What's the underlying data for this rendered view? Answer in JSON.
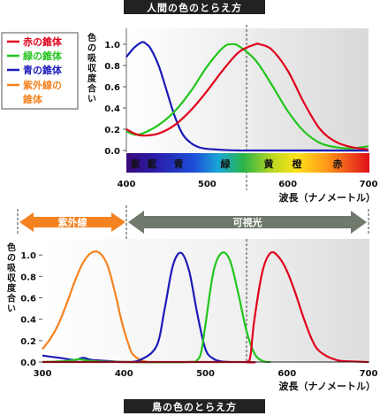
{
  "banners": {
    "top": "人間の色のとらえ方",
    "bottom": "鳥の色のとらえ方"
  },
  "legend": [
    {
      "label": "赤の錐体",
      "color": "#e0001b"
    },
    {
      "label": "緑の錐体",
      "color": "#22c51d"
    },
    {
      "label": "青の錐体",
      "color": "#1a1ab8"
    },
    {
      "label": "紫外線の",
      "label2": "錐体",
      "color": "#f58220"
    }
  ],
  "spectrum_labels": [
    "紫",
    "藍",
    "青",
    "緑",
    "黄",
    "橙",
    "赤"
  ],
  "uv_label": "紫外線",
  "visible_label": "可視光",
  "chart_data": [
    {
      "type": "line",
      "title": "人間の色のとらえ方",
      "xlabel": "波長（ナノメートル）",
      "ylabel": "色の吸収度合い",
      "xlim": [
        400,
        700
      ],
      "ylim": [
        0,
        1.15
      ],
      "xticks": [
        "400",
        "500",
        "600",
        "700"
      ],
      "yticks": [
        "0.0",
        "0.2",
        "0.4",
        "0.6",
        "0.8",
        "1.0"
      ],
      "reference_line_x": 555,
      "series": [
        {
          "name": "青の錐体",
          "color": "#1a1ab8",
          "x": [
            400,
            410,
            420,
            425,
            430,
            440,
            450,
            460,
            470,
            480,
            490,
            500,
            510,
            520,
            540,
            560,
            700
          ],
          "y": [
            0.88,
            0.97,
            1.02,
            1.0,
            0.96,
            0.8,
            0.56,
            0.32,
            0.15,
            0.07,
            0.03,
            0.015,
            0.01,
            0.005,
            0.0,
            0.0,
            0.0
          ]
        },
        {
          "name": "緑の錐体",
          "color": "#22c51d",
          "x": [
            400,
            410,
            420,
            440,
            460,
            480,
            500,
            520,
            530,
            540,
            560,
            580,
            600,
            620,
            640,
            660,
            680,
            700
          ],
          "y": [
            0.18,
            0.15,
            0.16,
            0.24,
            0.37,
            0.56,
            0.79,
            0.97,
            1.0,
            0.98,
            0.85,
            0.62,
            0.37,
            0.18,
            0.07,
            0.03,
            0.02,
            0.04
          ]
        },
        {
          "name": "赤の錐体",
          "color": "#e0001b",
          "x": [
            400,
            410,
            420,
            440,
            460,
            480,
            500,
            520,
            540,
            560,
            565,
            580,
            600,
            620,
            640,
            660,
            680,
            700
          ],
          "y": [
            0.2,
            0.16,
            0.14,
            0.16,
            0.24,
            0.38,
            0.56,
            0.76,
            0.93,
            1.0,
            1.0,
            0.95,
            0.75,
            0.45,
            0.2,
            0.08,
            0.03,
            0.01
          ]
        }
      ]
    },
    {
      "type": "line",
      "title": "鳥の色のとらえ方",
      "xlabel": "波長（ナノメートル）",
      "ylabel": "色の吸収度合い",
      "xlim": [
        300,
        700
      ],
      "ylim": [
        0,
        1.15
      ],
      "xticks": [
        "300",
        "400",
        "500",
        "600",
        "700"
      ],
      "yticks": [
        "0.0",
        "0.2",
        "0.4",
        "0.6",
        "0.8",
        "1.0"
      ],
      "reference_line_x": [
        400,
        555
      ],
      "series": [
        {
          "name": "紫外線の錐体",
          "color": "#f58220",
          "x": [
            300,
            310,
            320,
            330,
            340,
            350,
            360,
            370,
            380,
            390,
            395,
            400,
            405,
            410,
            420,
            430,
            440
          ],
          "y": [
            0.12,
            0.22,
            0.36,
            0.55,
            0.76,
            0.93,
            1.02,
            1.02,
            0.9,
            0.62,
            0.45,
            0.3,
            0.18,
            0.08,
            0.02,
            0.0,
            0.0
          ]
        },
        {
          "name": "青の錐体",
          "color": "#1a1ab8",
          "x": [
            300,
            320,
            340,
            350,
            360,
            380,
            400,
            420,
            440,
            450,
            460,
            470,
            480,
            490,
            500,
            510,
            520,
            530
          ],
          "y": [
            0.06,
            0.04,
            0.02,
            0.04,
            0.02,
            0.01,
            0.0,
            0.02,
            0.15,
            0.5,
            0.9,
            1.02,
            0.85,
            0.45,
            0.12,
            0.03,
            0.005,
            0.0
          ]
        },
        {
          "name": "緑の錐体",
          "color": "#22c51d",
          "x": [
            300,
            330,
            345,
            360,
            400,
            480,
            490,
            495,
            500,
            510,
            520,
            530,
            540,
            550,
            560,
            570,
            580
          ],
          "y": [
            0.0,
            0.01,
            0.025,
            0.01,
            0.0,
            0.0,
            0.02,
            0.1,
            0.35,
            0.85,
            1.02,
            0.95,
            0.65,
            0.3,
            0.08,
            0.01,
            0.0
          ]
        },
        {
          "name": "赤の錐体",
          "color": "#e0001b",
          "x": [
            300,
            540,
            550,
            555,
            560,
            570,
            580,
            590,
            600,
            610,
            620,
            630,
            640,
            660,
            680,
            700
          ],
          "y": [
            0.0,
            0.0,
            0.0,
            0.05,
            0.4,
            0.85,
            1.02,
            0.98,
            0.85,
            0.65,
            0.42,
            0.22,
            0.1,
            0.02,
            0.005,
            0.0
          ]
        }
      ]
    }
  ]
}
